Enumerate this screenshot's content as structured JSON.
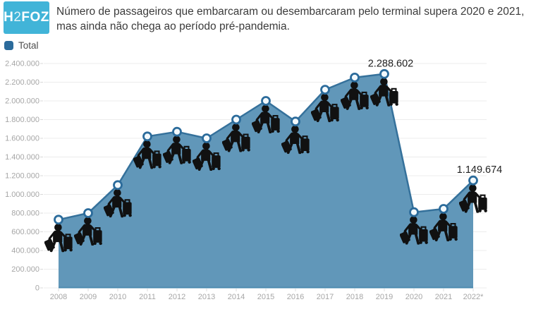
{
  "logo": {
    "part1": "H",
    "part2": "2",
    "part3": "FOZ"
  },
  "header": {
    "title": "Número de passageiros que embarcaram ou desembarcaram pelo terminal supera 2020 e 2021, mas ainda não chega ao período pré-pandemia."
  },
  "legend": {
    "label": "Total"
  },
  "chart_data": {
    "type": "area",
    "categories": [
      "2008",
      "2009",
      "2010",
      "2011",
      "2012",
      "2013",
      "2014",
      "2015",
      "2016",
      "2017",
      "2018",
      "2019",
      "2020",
      "2021",
      "2022*"
    ],
    "series": [
      {
        "name": "Total",
        "values": [
          730000,
          800000,
          1100000,
          1620000,
          1670000,
          1600000,
          1800000,
          2000000,
          1780000,
          2120000,
          2250000,
          2288602,
          810000,
          845000,
          1149674
        ]
      }
    ],
    "ylim": [
      0,
      2400000
    ],
    "ytick_step": 200000,
    "ytick_labels": [
      "0",
      "200.000",
      "400.000",
      "600.000",
      "800.000",
      "1.000.000",
      "1.200.000",
      "1.400.000",
      "1.600.000",
      "1.800.000",
      "2.000.000",
      "2.200.000",
      "2.400.000"
    ],
    "grid": true,
    "legend_position": "top-left",
    "annotations": [
      {
        "category": "2019",
        "text": "2.288.602"
      },
      {
        "category": "2022*",
        "text": "1.149.674"
      }
    ],
    "colors": {
      "logo_bg": "#41b4d8",
      "title_text": "#3b3b3b",
      "legend_swatch": "#2b6b9b",
      "area_fill": "#6197b9",
      "series_line": "#35719b",
      "axis_bottom_line": "#4d8bb0",
      "marker_fill": "#f3f9fc",
      "marker_stroke": "#2b6b9b",
      "grid_line": "#ececec",
      "axis_label": "#a6a6a6",
      "annotation_text": "#222222",
      "icon": "#111111"
    }
  }
}
